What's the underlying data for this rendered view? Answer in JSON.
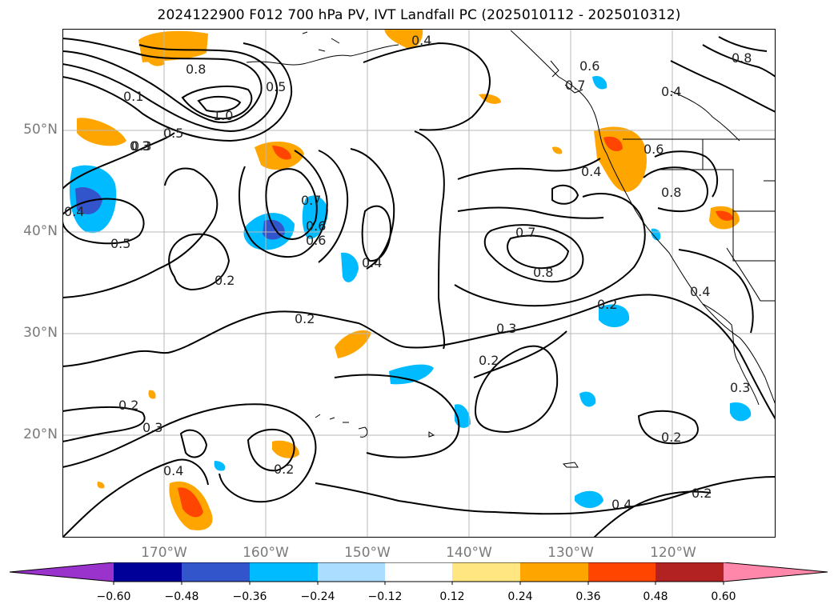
{
  "title": "2024122900 F012 700 hPa PV, IVT Landfall PC (2025010112 - 2025010312)",
  "map": {
    "lat_labels": [
      "50°N",
      "40°N",
      "30°N",
      "20°N"
    ],
    "lon_labels": [
      "170°W",
      "160°W",
      "150°W",
      "140°W",
      "130°W",
      "120°W"
    ],
    "contour_labels": [
      "0.4",
      "0.6",
      "0.8",
      "0.5",
      "0.7",
      "0.2",
      "1.0",
      "0.3",
      "0.5",
      "0.6",
      "0.8",
      "0.7",
      "0.4",
      "0.2",
      "0.3",
      "0.2",
      "0.2",
      "0.4",
      "0.2",
      "0.3",
      "0.4",
      "0.2",
      "0.4",
      "0.2",
      "0.3",
      "0.2",
      "0.8",
      "0.8",
      "0.6",
      "0.4",
      "0.4",
      "0.1",
      "0.7",
      "0.6",
      "0.3",
      "0.4",
      "0.5"
    ]
  },
  "colorbar": {
    "ticks": [
      "−0.60",
      "−0.48",
      "−0.36",
      "−0.24",
      "−0.12",
      "0.12",
      "0.24",
      "0.36",
      "0.48",
      "0.60"
    ],
    "colors": {
      "under": "#9933cc",
      "bins": [
        "#000099",
        "#3355cc",
        "#00bbff",
        "#aaddff",
        "#ffffff",
        "#ffe680",
        "#ffa500",
        "#ff4500",
        "#b22222",
        "#ff88aa"
      ],
      "over": "#ff88aa"
    }
  }
}
